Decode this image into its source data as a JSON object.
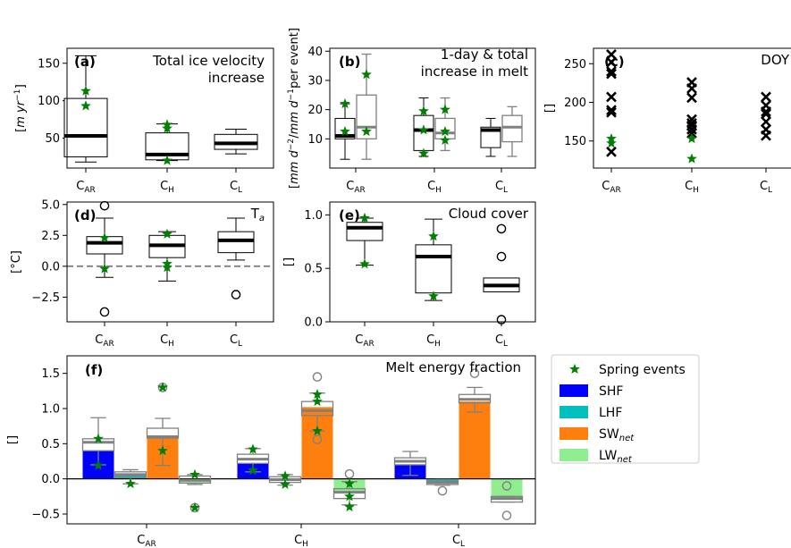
{
  "chart_data": [
    {
      "id": "a",
      "type": "box",
      "panel_letter": "(a)",
      "title_lines": [
        "Total ice velocity",
        "increase"
      ],
      "ylabel": "[$m\\,yr^{-1}$]",
      "ylabel_parts": [
        "[",
        "m yr",
        "−1",
        "]"
      ],
      "ylim": [
        10,
        170
      ],
      "yticks": [
        50,
        100,
        150
      ],
      "ytick_labels": [
        "50",
        "100",
        "150"
      ],
      "categories": [
        "C_AR",
        "C_H",
        "C_L"
      ],
      "boxes": [
        {
          "q1": 25,
          "q3": 103,
          "median": 53,
          "wlo": 18,
          "whi": 160
        },
        {
          "q1": 21,
          "q3": 57,
          "median": 28,
          "wlo": 20,
          "whi": 69
        },
        {
          "q1": 35,
          "q3": 55,
          "median": 43,
          "wlo": 29,
          "whi": 62
        }
      ],
      "spring_events": [
        [
          0,
          113
        ],
        [
          0,
          93
        ],
        [
          1,
          68
        ],
        [
          1,
          63
        ],
        [
          1,
          20
        ]
      ]
    },
    {
      "id": "b",
      "type": "box",
      "panel_letter": "(b)",
      "title_lines": [
        "1-day & total",
        "increase in melt"
      ],
      "ylabel_parts": [
        "[",
        "mm d",
        "−2",
        "/",
        "mm d",
        "−1",
        " per event]"
      ],
      "ylim": [
        0,
        41
      ],
      "yticks": [
        10,
        20,
        30,
        40
      ],
      "ytick_labels": [
        "10",
        "20",
        "30",
        "40"
      ],
      "categories": [
        "C_AR",
        "C_H",
        "C_L"
      ],
      "series": [
        {
          "name": "1-day",
          "style": "black",
          "boxes": [
            {
              "q1": 10,
              "q3": 17,
              "median": 11,
              "wlo": 3,
              "whi": 22
            },
            {
              "q1": 6,
              "q3": 18,
              "median": 13,
              "wlo": 4,
              "whi": 24
            },
            {
              "q1": 7,
              "q3": 14,
              "median": 13,
              "wlo": 4,
              "whi": 17
            }
          ]
        },
        {
          "name": "total",
          "style": "grey",
          "boxes": [
            {
              "q1": 10,
              "q3": 25,
              "median": 14,
              "wlo": 3,
              "whi": 39
            },
            {
              "q1": 10,
              "q3": 17,
              "median": 12,
              "wlo": 6,
              "whi": 24
            },
            {
              "q1": 9,
              "q3": 18,
              "median": 14,
              "wlo": 4,
              "whi": 21
            }
          ]
        }
      ],
      "spring_events": [
        [
          0,
          0,
          22
        ],
        [
          0,
          0,
          12.5
        ],
        [
          0,
          1,
          32
        ],
        [
          0,
          1,
          12.5
        ],
        [
          1,
          0,
          19.5
        ],
        [
          1,
          0,
          13
        ],
        [
          1,
          0,
          5
        ],
        [
          1,
          1,
          20
        ],
        [
          1,
          1,
          12.5
        ],
        [
          1,
          1,
          9.5
        ]
      ]
    },
    {
      "id": "c",
      "type": "scatter",
      "panel_letter": "(c)",
      "title_lines": [
        "DOY"
      ],
      "ylabel": "[]",
      "ylim": [
        115,
        270
      ],
      "yticks": [
        150,
        200,
        250
      ],
      "ytick_labels": [
        "150",
        "200",
        "250"
      ],
      "categories": [
        "C_AR",
        "C_H",
        "C_L"
      ],
      "x_marks": [
        [
          0,
          262
        ],
        [
          0,
          252
        ],
        [
          0,
          240
        ],
        [
          0,
          237
        ],
        [
          0,
          207
        ],
        [
          0,
          190
        ],
        [
          0,
          187
        ],
        [
          0,
          136
        ],
        [
          1,
          226
        ],
        [
          1,
          218
        ],
        [
          1,
          206
        ],
        [
          1,
          178
        ],
        [
          1,
          173
        ],
        [
          1,
          170
        ],
        [
          1,
          165
        ],
        [
          1,
          160
        ],
        [
          2,
          207
        ],
        [
          2,
          196
        ],
        [
          2,
          188
        ],
        [
          2,
          185
        ],
        [
          2,
          175
        ],
        [
          2,
          165
        ],
        [
          2,
          157
        ]
      ],
      "spring_events": [
        [
          0,
          153
        ],
        [
          0,
          147
        ],
        [
          1,
          153
        ],
        [
          1,
          127
        ]
      ]
    },
    {
      "id": "d",
      "type": "box",
      "panel_letter": "(d)",
      "title_lines": [
        "T_a"
      ],
      "title_parts": [
        "T",
        "a"
      ],
      "ylabel": "[°C]",
      "ylim": [
        -4.5,
        5.2
      ],
      "yticks": [
        -2.5,
        0.0,
        2.5,
        5.0
      ],
      "ytick_labels": [
        "−2.5",
        "0.0",
        "2.5",
        "5.0"
      ],
      "zero_line": 0,
      "categories": [
        "C_AR",
        "C_H",
        "C_L"
      ],
      "boxes": [
        {
          "q1": 1.0,
          "q3": 2.4,
          "median": 1.9,
          "wlo": -0.9,
          "whi": 3.9
        },
        {
          "q1": 0.7,
          "q3": 2.5,
          "median": 1.7,
          "wlo": -1.2,
          "whi": 2.8
        },
        {
          "q1": 1.1,
          "q3": 2.8,
          "median": 2.1,
          "wlo": 0.5,
          "whi": 3.9
        }
      ],
      "fliers": [
        [
          0,
          4.9
        ],
        [
          0,
          -3.7
        ],
        [
          2,
          -2.3
        ]
      ],
      "spring_events": [
        [
          0,
          2.3
        ],
        [
          0,
          -0.2
        ],
        [
          1,
          2.6
        ],
        [
          1,
          0.2
        ],
        [
          1,
          -0.1
        ]
      ]
    },
    {
      "id": "e",
      "type": "box",
      "panel_letter": "(e)",
      "title_lines": [
        "Cloud cover"
      ],
      "ylabel": "[]",
      "ylim": [
        0.0,
        1.12
      ],
      "yticks": [
        0.0,
        0.5,
        1.0
      ],
      "ytick_labels": [
        "0.0",
        "0.5",
        "1.0"
      ],
      "categories": [
        "C_AR",
        "C_H",
        "C_L"
      ],
      "boxes": [
        {
          "q1": 0.76,
          "q3": 0.93,
          "median": 0.88,
          "wlo": 0.53,
          "whi": 0.97
        },
        {
          "q1": 0.27,
          "q3": 0.72,
          "median": 0.61,
          "wlo": 0.2,
          "whi": 0.96
        },
        {
          "q1": 0.28,
          "q3": 0.41,
          "median": 0.34,
          "wlo": 0.28,
          "whi": 0.41
        }
      ],
      "fliers": [
        [
          2,
          0.87
        ],
        [
          2,
          0.61
        ],
        [
          2,
          0.02
        ]
      ],
      "spring_events": [
        [
          0,
          0.97
        ],
        [
          0,
          0.54
        ],
        [
          1,
          0.8
        ],
        [
          1,
          0.24
        ]
      ]
    },
    {
      "id": "f",
      "type": "bar",
      "panel_letter": "(f)",
      "title_lines": [
        "Melt energy fraction"
      ],
      "ylabel": "[]",
      "ylim": [
        -0.64,
        1.75
      ],
      "yticks": [
        -0.5,
        0.0,
        0.5,
        1.0,
        1.5
      ],
      "ytick_labels": [
        "−0.5",
        "0.0",
        "0.5",
        "1.0",
        "1.5"
      ],
      "zero_line": 0,
      "categories": [
        "C_AR",
        "C_H",
        "C_L"
      ],
      "series": [
        {
          "name": "SHF",
          "color": "#0000ff",
          "values": [
            0.4,
            0.22,
            0.2
          ],
          "boxes": [
            {
              "q1": 0.4,
              "q3": 0.57,
              "median": 0.52,
              "wlo": 0.2,
              "whi": 0.87
            },
            {
              "q1": 0.22,
              "q3": 0.35,
              "median": 0.28,
              "wlo": 0.1,
              "whi": 0.43
            },
            {
              "q1": 0.2,
              "q3": 0.3,
              "median": 0.25,
              "wlo": 0.05,
              "whi": 0.39
            }
          ]
        },
        {
          "name": "LHF",
          "color": "#00bfbf",
          "values": [
            0.05,
            -0.03,
            -0.05
          ],
          "boxes": [
            {
              "q1": 0.02,
              "q3": 0.1,
              "median": 0.06,
              "wlo": -0.07,
              "whi": 0.13
            },
            {
              "q1": -0.05,
              "q3": 0.03,
              "median": -0.01,
              "wlo": -0.09,
              "whi": 0.06
            },
            {
              "q1": -0.08,
              "q3": -0.01,
              "median": -0.05,
              "wlo": -0.09,
              "whi": -0.01
            }
          ]
        },
        {
          "name": "SW_net",
          "color": "#ff7f0e",
          "values": [
            0.58,
            1.02,
            1.1
          ],
          "boxes": [
            {
              "q1": 0.58,
              "q3": 0.72,
              "median": 0.6,
              "wlo": 0.19,
              "whi": 0.86
            },
            {
              "q1": 0.9,
              "q3": 1.1,
              "median": 0.97,
              "wlo": 0.68,
              "whi": 1.22
            },
            {
              "q1": 1.08,
              "q3": 1.2,
              "median": 1.13,
              "wlo": 0.95,
              "whi": 1.3
            }
          ]
        },
        {
          "name": "LW_net",
          "color": "#90ee90",
          "values": [
            -0.05,
            -0.2,
            -0.3
          ],
          "boxes": [
            {
              "q1": -0.06,
              "q3": 0.04,
              "median": -0.02,
              "wlo": -0.08,
              "whi": 0.06
            },
            {
              "q1": -0.28,
              "q3": -0.14,
              "median": -0.19,
              "wlo": -0.37,
              "whi": -0.04
            },
            {
              "q1": -0.33,
              "q3": -0.25,
              "median": -0.28,
              "wlo": -0.33,
              "whi": -0.25
            }
          ]
        }
      ],
      "fliers": [
        [
          0,
          2,
          1.3
        ],
        [
          0,
          3,
          -0.41
        ],
        [
          1,
          3,
          0.07
        ],
        [
          1,
          2,
          1.45
        ],
        [
          1,
          2,
          0.56
        ],
        [
          2,
          1,
          -0.17
        ],
        [
          2,
          2,
          1.5
        ],
        [
          2,
          3,
          -0.1
        ],
        [
          2,
          3,
          -0.52
        ]
      ],
      "spring_events": [
        [
          0,
          0,
          0.57
        ],
        [
          0,
          0,
          0.19
        ],
        [
          0,
          1,
          -0.07
        ],
        [
          0,
          2,
          1.3
        ],
        [
          0,
          2,
          0.4
        ],
        [
          0,
          3,
          0.06
        ],
        [
          0,
          3,
          -0.41
        ],
        [
          1,
          0,
          0.42
        ],
        [
          1,
          0,
          0.12
        ],
        [
          1,
          1,
          0.04
        ],
        [
          1,
          1,
          -0.08
        ],
        [
          1,
          2,
          1.2
        ],
        [
          1,
          2,
          1.1
        ],
        [
          1,
          2,
          0.68
        ],
        [
          1,
          3,
          -0.07
        ],
        [
          1,
          3,
          -0.25
        ],
        [
          1,
          3,
          -0.4
        ]
      ]
    }
  ],
  "legend": {
    "placement": "right of panel (f)",
    "entries": [
      {
        "label": "Spring events",
        "kind": "star",
        "color": "#008000"
      },
      {
        "label": "SHF",
        "kind": "patch",
        "color": "#0000ff"
      },
      {
        "label": "LHF",
        "kind": "patch",
        "color": "#00bfbf"
      },
      {
        "label": "SW",
        "sub": "net",
        "kind": "patch",
        "color": "#ff7f0e"
      },
      {
        "label": "LW",
        "sub": "net",
        "kind": "patch",
        "color": "#90ee90"
      }
    ]
  },
  "category_labels": [
    {
      "main": "C",
      "sub": "AR"
    },
    {
      "main": "C",
      "sub": "H"
    },
    {
      "main": "C",
      "sub": "L"
    }
  ]
}
